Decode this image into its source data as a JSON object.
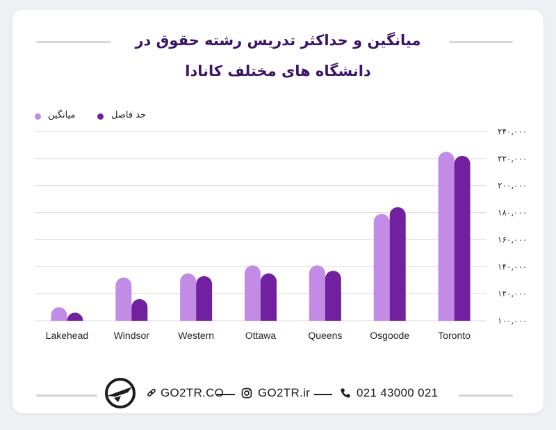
{
  "title_line1": "میانگین و حداکثر تدریس رشته حقوق در",
  "title_line2": "دانشگاه های مختلف کانادا",
  "footer": {
    "website": "GO2TR.CO",
    "instagram": "GO2TR.ir",
    "phone": "021 43000 021"
  },
  "icons": [
    "logo-icon",
    "link-icon",
    "instagram-icon",
    "phone-icon"
  ],
  "colors": {
    "average": "#c18be6",
    "max": "#7120a0",
    "title": "#3a1467"
  },
  "chart_data": {
    "type": "bar",
    "categories": [
      "Lakehead",
      "Windsor",
      "Western",
      "Ottawa",
      "Queens",
      "Osgoode",
      "Toronto"
    ],
    "series": [
      {
        "name": "میانگین",
        "color": "#c18be6",
        "values": [
          110000,
          132000,
          135000,
          141000,
          141000,
          179000,
          225000
        ]
      },
      {
        "name": "حد فاصل",
        "color": "#7120a0",
        "values": [
          106000,
          116000,
          133000,
          135000,
          137000,
          184000,
          222000
        ]
      }
    ],
    "ylim": [
      100000,
      240000
    ],
    "yticks": [
      100000,
      120000,
      140000,
      160000,
      180000,
      200000,
      220000,
      240000
    ],
    "ytick_labels": [
      "۱۰۰,۰۰۰",
      "۱۲۰,۰۰۰",
      "۱۴۰,۰۰۰",
      "۱۶۰,۰۰۰",
      "۱۸۰,۰۰۰",
      "۲۰۰,۰۰۰",
      "۲۲۰,۰۰۰",
      "۲۴۰,۰۰۰"
    ],
    "grid": true,
    "legend": "top-left",
    "title": "",
    "xlabel": "",
    "ylabel": ""
  }
}
